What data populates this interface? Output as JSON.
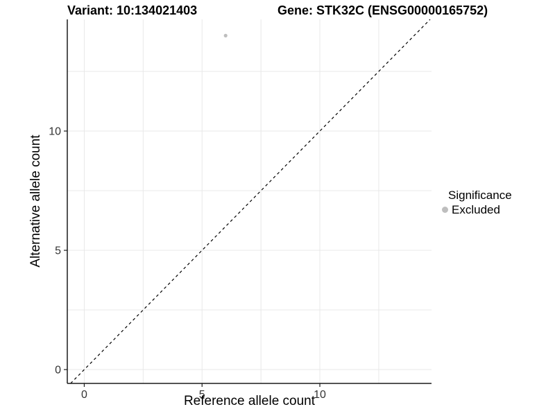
{
  "colors": {
    "background": "#ffffff",
    "grid": "#e8e8e8",
    "axis": "#1a1a1a",
    "tick_text": "#333333",
    "dashed_line": "#000000",
    "point": "#bebebe",
    "text": "#000000"
  },
  "chart_data": {
    "type": "scatter",
    "titles": {
      "left": "Variant: 10:134021403",
      "right": "Gene: STK32C (ENSG00000165752)"
    },
    "xlabel": "Reference allele count",
    "ylabel": "Alternative allele count",
    "xlim": [
      -0.72,
      14.74
    ],
    "ylim": [
      -0.58,
      14.68
    ],
    "xticks": [
      0,
      5,
      10
    ],
    "yticks": [
      0,
      5,
      10
    ],
    "grid": {
      "show": true,
      "step": 2.5
    },
    "reference_line": {
      "type": "identity",
      "slope": 1,
      "intercept": 0,
      "style": "dashed"
    },
    "series": [
      {
        "name": "Excluded",
        "color": "#bebebe",
        "points": [
          [
            6,
            14
          ]
        ]
      }
    ],
    "legend": {
      "title": "Significance",
      "position": "right",
      "entries": [
        {
          "label": "Excluded",
          "color": "#bebebe",
          "marker": "circle-icon"
        }
      ]
    }
  }
}
